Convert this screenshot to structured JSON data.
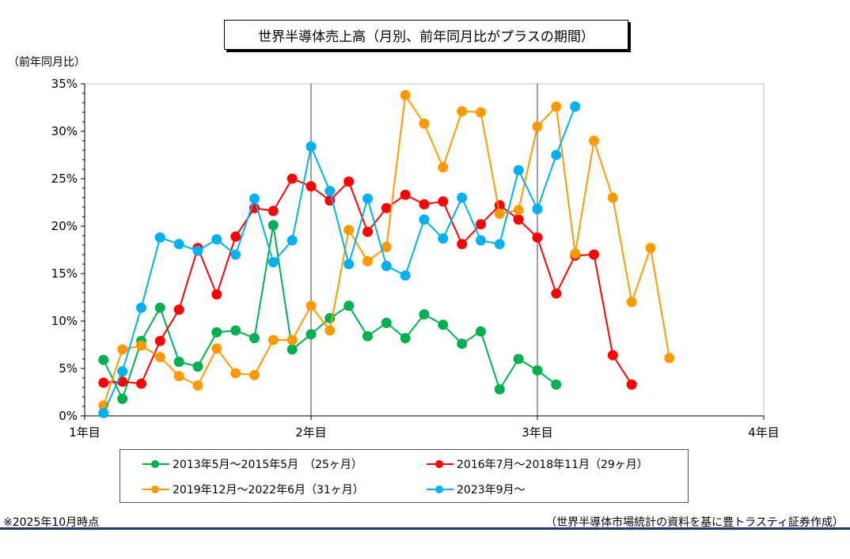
{
  "title": "世界半導体売上高（月別、前年同月比がプラスの期間）",
  "ylabel": "（前年同月比）",
  "note_left": "※2025年10月時点",
  "note_right": "（世界半導体市場統計の資料を基に豊トラスティ証券作成）",
  "colors": {
    "green": "#00b050",
    "red": "#ff0000",
    "orange": "#ff9900",
    "blue": "#00b0f0"
  },
  "chart_data": {
    "type": "line",
    "x_tick_labels": [
      "1年目",
      "2年目",
      "3年目",
      "4年目"
    ],
    "y_tick_labels": [
      "0%",
      "5%",
      "10%",
      "15%",
      "20%",
      "25%",
      "30%",
      "35%"
    ],
    "xlim": [
      1,
      4
    ],
    "ylim": [
      0,
      35
    ],
    "x_unit": "years (monthly steps, 1/12)",
    "grid": "vertical lines at year boundaries",
    "legend_position": "bottom",
    "series": [
      {
        "name": "2013年5月～2015年5月　（25ヶ月）",
        "color": "#00b050",
        "values": [
          5.9,
          1.8,
          7.9,
          11.4,
          5.7,
          5.2,
          8.8,
          9.0,
          8.2,
          20.1,
          7.0,
          8.6,
          10.3,
          11.6,
          8.4,
          9.8,
          8.2,
          10.7,
          9.6,
          7.6,
          8.9,
          2.8,
          6.0,
          4.8,
          3.3
        ]
      },
      {
        "name": "2016年7月～2018年11月（29ヶ月）",
        "color": "#ff0000",
        "values": [
          3.5,
          3.6,
          3.4,
          7.9,
          11.2,
          17.7,
          12.8,
          18.9,
          21.9,
          21.6,
          25.0,
          24.2,
          22.7,
          24.7,
          19.4,
          21.9,
          23.3,
          22.3,
          22.6,
          18.1,
          20.2,
          22.2,
          20.7,
          18.8,
          12.9,
          16.9,
          17.0,
          6.4,
          3.3
        ]
      },
      {
        "name": "2019年12月～2022年6月（31ヶ月）",
        "color": "#ff9900",
        "values": [
          1.1,
          7.0,
          7.4,
          6.2,
          4.2,
          3.2,
          7.1,
          4.5,
          4.3,
          8.0,
          8.0,
          11.6,
          9.0,
          19.6,
          16.3,
          17.8,
          33.8,
          30.8,
          26.2,
          32.1,
          32.0,
          21.3,
          21.7,
          30.5,
          32.6,
          17.1,
          29.0,
          23.0,
          12.0,
          17.7,
          6.1
        ]
      },
      {
        "name": "2023年9月～",
        "color": "#00b0f0",
        "values": [
          0.3,
          4.7,
          11.4,
          18.8,
          18.1,
          17.4,
          18.6,
          17.0,
          22.9,
          16.2,
          18.5,
          28.4,
          23.7,
          16.0,
          22.9,
          15.8,
          14.8,
          20.7,
          18.7,
          23.0,
          18.5,
          18.1,
          25.9,
          21.8,
          27.5,
          32.6
        ]
      }
    ]
  }
}
